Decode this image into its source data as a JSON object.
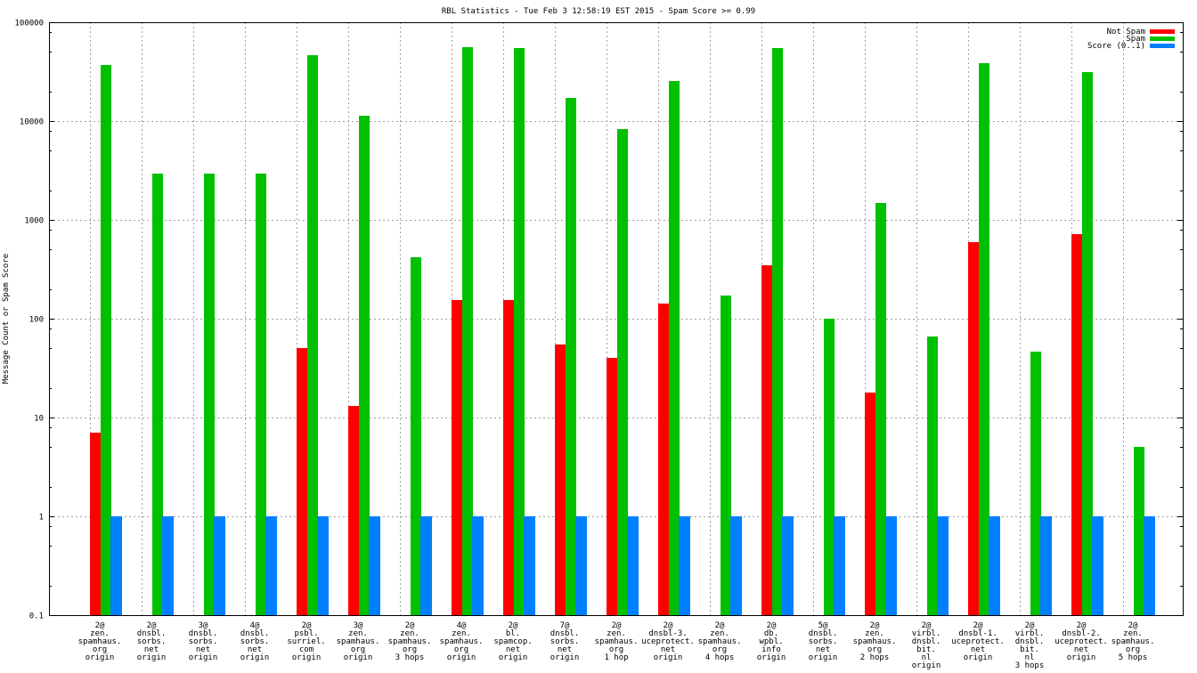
{
  "chart_data": {
    "type": "bar",
    "title": "RBL Statistics - Tue Feb  3 12:58:19 EST 2015 - Spam Score >= 0.99",
    "xlabel": "",
    "ylabel": "Message Count or Spam Score",
    "yscale": "log",
    "ylim": [
      0.1,
      100000
    ],
    "yticks": [
      "0.1",
      "1",
      "10",
      "100",
      "1000",
      "10000",
      "100000"
    ],
    "ytick_values": [
      0.1,
      1,
      10,
      100,
      1000,
      10000,
      100000
    ],
    "grid": true,
    "legend_position": "top-right",
    "categories": [
      [
        "2@",
        "zen.",
        "spamhaus.",
        "org",
        "origin"
      ],
      [
        "2@",
        "dnsbl.",
        "sorbs.",
        "net",
        "origin"
      ],
      [
        "3@",
        "dnsbl.",
        "sorbs.",
        "net",
        "origin"
      ],
      [
        "4@",
        "dnsbl.",
        "sorbs.",
        "net",
        "origin"
      ],
      [
        "2@",
        "psbl.",
        "surriel.",
        "com",
        "origin"
      ],
      [
        "3@",
        "zen.",
        "spamhaus.",
        "org",
        "origin"
      ],
      [
        "2@",
        "zen.",
        "spamhaus.",
        "org",
        "3 hops"
      ],
      [
        "4@",
        "zen.",
        "spamhaus.",
        "org",
        "origin"
      ],
      [
        "2@",
        "bl.",
        "spamcop.",
        "net",
        "origin"
      ],
      [
        "7@",
        "dnsbl.",
        "sorbs.",
        "net",
        "origin"
      ],
      [
        "2@",
        "zen.",
        "spamhaus.",
        "org",
        "1 hop"
      ],
      [
        "2@",
        "dnsbl-3.",
        "uceprotect.",
        "net",
        "origin"
      ],
      [
        "2@",
        "zen.",
        "spamhaus.",
        "org",
        "4 hops"
      ],
      [
        "2@",
        "db.",
        "wpbl.",
        "info",
        "origin"
      ],
      [
        "5@",
        "dnsbl.",
        "sorbs.",
        "net",
        "origin"
      ],
      [
        "2@",
        "zen.",
        "spamhaus.",
        "org",
        "2 hops"
      ],
      [
        "2@",
        "virbl.",
        "dnsbl.",
        "bit.",
        "nl",
        "origin"
      ],
      [
        "2@",
        "dnsbl-1.",
        "uceprotect.",
        "net",
        "origin"
      ],
      [
        "2@",
        "virbl.",
        "dnsbl.",
        "bit.",
        "nl",
        "3 hops"
      ],
      [
        "2@",
        "dnsbl-2.",
        "uceprotect.",
        "net",
        "origin"
      ],
      [
        "2@",
        "zen.",
        "spamhaus.",
        "org",
        "5 hops"
      ]
    ],
    "series": [
      {
        "name": "Not Spam",
        "color": "#ff0000",
        "values": [
          7,
          null,
          null,
          null,
          50,
          13,
          null,
          155,
          155,
          55,
          40,
          143,
          null,
          345,
          null,
          18,
          null,
          595,
          null,
          720,
          null
        ]
      },
      {
        "name": "Spam",
        "color": "#00c000",
        "values": [
          37000,
          2950,
          2950,
          2950,
          46000,
          11300,
          420,
          56000,
          55000,
          17000,
          8300,
          25500,
          170,
          55000,
          100,
          1480,
          66,
          38600,
          46,
          31300,
          5
        ]
      },
      {
        "name": "Score (0..1)",
        "color": "#0080ff",
        "values": [
          1,
          1,
          1,
          1,
          1,
          1,
          1,
          1,
          1,
          1,
          1,
          1,
          1,
          1,
          1,
          1,
          1,
          1,
          1,
          1,
          1
        ]
      }
    ]
  }
}
